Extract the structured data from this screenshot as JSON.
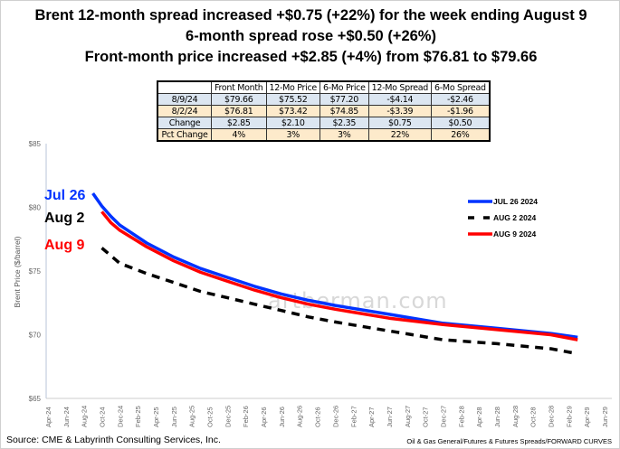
{
  "titles": [
    "Brent 12-month spread increased +$0.75 (+22%) for the week ending August 9",
    "6-month spread rose +$0.50 (+26%)",
    "Front-month price increased +$2.85 (+4%) from $76.81 to $79.66"
  ],
  "table": {
    "headers": [
      "",
      "Front Month",
      "12-Mo Price",
      "6-Mo Price",
      "12-Mo Spread",
      "6-Mo Spread"
    ],
    "rows": [
      [
        "8/9/24",
        "$79.66",
        "$75.52",
        "$77.20",
        "-$4.14",
        "-$2.46"
      ],
      [
        "8/2/24",
        "$76.81",
        "$73.42",
        "$74.85",
        "-$3.39",
        "-$1.96"
      ],
      [
        "Change",
        "$2.85",
        "$2.10",
        "$2.35",
        "$0.75",
        "$0.50"
      ],
      [
        "Pct Change",
        "4%",
        "3%",
        "3%",
        "22%",
        "26%"
      ]
    ]
  },
  "source": "Source: CME & Labyrinth Consulting Services, Inc.",
  "path": "Oil & Gas General/Futures & Futures Spreads/FORWARD CURVES",
  "watermark": "artberman.com",
  "chart_data": {
    "type": "line",
    "ylabel": "Brent Price ($/barrel)",
    "ylim": [
      65,
      85
    ],
    "yticks": [
      "$65",
      "$70",
      "$75",
      "$80",
      "$85"
    ],
    "yticks_values": [
      65,
      70,
      75,
      80,
      85
    ],
    "xlim": [
      "2024-04",
      "2029-06"
    ],
    "xticks": [
      "Apr-24",
      "Jun-24",
      "Aug-24",
      "Oct-24",
      "Dec-24",
      "Feb-25",
      "Apr-25",
      "Jun-25",
      "Aug-25",
      "Oct-25",
      "Dec-25",
      "Feb-26",
      "Apr-26",
      "Jun-26",
      "Aug-26",
      "Oct-26",
      "Dec-26",
      "Feb-27",
      "Apr-27",
      "Jun-27",
      "Aug-27",
      "Oct-27",
      "Dec-27",
      "Feb-28",
      "Apr-28",
      "Jun-28",
      "Aug-28",
      "Oct-28",
      "Dec-28",
      "Feb-29",
      "Apr-29",
      "Jun-29"
    ],
    "grid": false,
    "legend_position": "right",
    "series": [
      {
        "name": "JUL 26 2024",
        "label": "Jul 26",
        "color": "#0033ff",
        "dash": false,
        "x": [
          "2024-09",
          "2024-10",
          "2024-11",
          "2024-12",
          "2025-03",
          "2025-06",
          "2025-09",
          "2025-12",
          "2026-03",
          "2026-06",
          "2026-09",
          "2026-12",
          "2027-06",
          "2027-12",
          "2028-06",
          "2028-12",
          "2029-03"
        ],
        "y": [
          81.1,
          80.1,
          79.3,
          78.6,
          77.2,
          76.1,
          75.2,
          74.5,
          73.8,
          73.2,
          72.7,
          72.3,
          71.6,
          70.9,
          70.5,
          70.1,
          69.8
        ]
      },
      {
        "name": "AUG 2 2024",
        "label": "Aug 2",
        "color": "#000000",
        "dash": true,
        "x": [
          "2024-10",
          "2024-12",
          "2025-03",
          "2025-06",
          "2025-09",
          "2025-12",
          "2026-03",
          "2026-06",
          "2026-09",
          "2026-12",
          "2027-06",
          "2027-12",
          "2028-06",
          "2028-12",
          "2029-03"
        ],
        "y": [
          76.81,
          75.6,
          74.8,
          74.1,
          73.4,
          72.9,
          72.4,
          71.9,
          71.4,
          71.0,
          70.3,
          69.6,
          69.3,
          68.9,
          68.5
        ]
      },
      {
        "name": "AUG 9 2024",
        "label": "Aug 9",
        "color": "#ff0000",
        "dash": false,
        "x": [
          "2024-10",
          "2024-11",
          "2024-12",
          "2025-03",
          "2025-06",
          "2025-09",
          "2025-12",
          "2026-03",
          "2026-06",
          "2026-09",
          "2026-12",
          "2027-06",
          "2027-12",
          "2028-06",
          "2028-12",
          "2029-03"
        ],
        "y": [
          79.66,
          78.8,
          78.2,
          76.9,
          75.8,
          74.9,
          74.2,
          73.5,
          72.9,
          72.4,
          72.0,
          71.3,
          70.8,
          70.4,
          70.0,
          69.6
        ]
      }
    ]
  }
}
